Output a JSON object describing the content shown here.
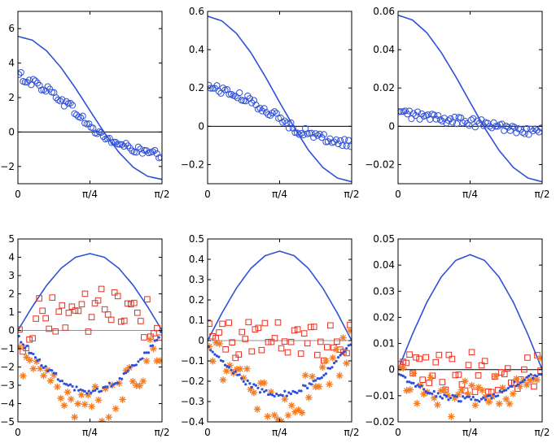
{
  "chart_data": [
    {
      "type": "line+scatter",
      "title": "",
      "xlabel": "",
      "ylabel": "",
      "xlim": [
        0,
        1.5708
      ],
      "x_ticks": [
        {
          "value": 0,
          "label": "0"
        },
        {
          "value": 0.7854,
          "label": "π/4"
        },
        {
          "value": 1.5708,
          "label": "π/2"
        }
      ],
      "ylim": [
        -3,
        7
      ],
      "y_ticks": [
        {
          "value": -2,
          "label": "−2"
        },
        {
          "value": 0,
          "label": "0"
        },
        {
          "value": 2,
          "label": "2"
        },
        {
          "value": 4,
          "label": "4"
        },
        {
          "value": 6,
          "label": "6"
        }
      ],
      "baseline": {
        "value": 0,
        "color": "#000000"
      },
      "series": [
        {
          "name": "model",
          "style": "line",
          "color": "#3050d8",
          "x": [
            0,
            0.1571,
            0.3142,
            0.4712,
            0.6283,
            0.7854,
            0.9425,
            1.0996,
            1.2566,
            1.4137,
            1.5708
          ],
          "y": [
            5.55,
            5.33,
            4.7,
            3.73,
            2.54,
            1.24,
            -0.04,
            -1.17,
            -2.04,
            -2.57,
            -2.75
          ]
        },
        {
          "name": "simulation",
          "style": "circle",
          "color": "#3050d8",
          "x": [
            0,
            0.1571,
            0.3142,
            0.4712,
            0.6283,
            0.7854,
            0.9425,
            1.0996,
            1.2566,
            1.4137,
            1.5708
          ],
          "y": [
            3.3,
            2.9,
            2.5,
            1.9,
            1.2,
            0.3,
            -0.3,
            -0.7,
            -1.0,
            -1.2,
            -1.4
          ]
        }
      ]
    },
    {
      "type": "line+scatter",
      "title": "",
      "xlabel": "",
      "ylabel": "",
      "xlim": [
        0,
        1.5708
      ],
      "x_ticks": [
        {
          "value": 0,
          "label": "0"
        },
        {
          "value": 0.7854,
          "label": "π/4"
        },
        {
          "value": 1.5708,
          "label": "π/2"
        }
      ],
      "ylim": [
        -0.3,
        0.6
      ],
      "y_ticks": [
        {
          "value": -0.2,
          "label": "−0.2"
        },
        {
          "value": 0,
          "label": "0"
        },
        {
          "value": 0.2,
          "label": "0.2"
        },
        {
          "value": 0.4,
          "label": "0.4"
        },
        {
          "value": 0.6,
          "label": "0.6"
        }
      ],
      "baseline": {
        "value": 0,
        "color": "#000000"
      },
      "series": [
        {
          "name": "model",
          "style": "line",
          "color": "#3050d8",
          "x": [
            0,
            0.1571,
            0.3142,
            0.4712,
            0.6283,
            0.7854,
            0.9425,
            1.0996,
            1.2566,
            1.4137,
            1.5708
          ],
          "y": [
            0.575,
            0.55,
            0.485,
            0.385,
            0.26,
            0.125,
            -0.005,
            -0.125,
            -0.215,
            -0.27,
            -0.29
          ]
        },
        {
          "name": "simulation",
          "style": "circle",
          "color": "#3050d8",
          "x": [
            0,
            0.1571,
            0.3142,
            0.4712,
            0.6283,
            0.7854,
            0.9425,
            1.0996,
            1.2566,
            1.4137,
            1.5708
          ],
          "y": [
            0.21,
            0.19,
            0.16,
            0.13,
            0.09,
            0.04,
            -0.01,
            -0.04,
            -0.06,
            -0.08,
            -0.09
          ]
        }
      ]
    },
    {
      "type": "line+scatter",
      "title": "",
      "xlabel": "",
      "ylabel": "",
      "xlim": [
        0,
        1.5708
      ],
      "x_ticks": [
        {
          "value": 0,
          "label": "0"
        },
        {
          "value": 0.7854,
          "label": "π/4"
        },
        {
          "value": 1.5708,
          "label": "π/2"
        }
      ],
      "ylim": [
        -0.03,
        0.06
      ],
      "y_ticks": [
        {
          "value": -0.02,
          "label": "−0.02"
        },
        {
          "value": 0,
          "label": "0"
        },
        {
          "value": 0.02,
          "label": "0.02"
        },
        {
          "value": 0.04,
          "label": "0.04"
        },
        {
          "value": 0.06,
          "label": "0.06"
        }
      ],
      "baseline": {
        "value": 0,
        "color": "#000000"
      },
      "series": [
        {
          "name": "model",
          "style": "line",
          "color": "#3050d8",
          "x": [
            0,
            0.1571,
            0.3142,
            0.4712,
            0.6283,
            0.7854,
            0.9425,
            1.0996,
            1.2566,
            1.4137,
            1.5708
          ],
          "y": [
            0.058,
            0.0555,
            0.0488,
            0.0385,
            0.026,
            0.0125,
            -0.0008,
            -0.0125,
            -0.0215,
            -0.027,
            -0.029
          ]
        },
        {
          "name": "simulation",
          "style": "circle",
          "color": "#3050d8",
          "x": [
            0,
            0.1571,
            0.3142,
            0.4712,
            0.6283,
            0.7854,
            0.9425,
            1.0996,
            1.2566,
            1.4137,
            1.5708
          ],
          "y": [
            0.007,
            0.006,
            0.005,
            0.004,
            0.003,
            0.002,
            0.001,
            0.0,
            -0.001,
            -0.002,
            -0.003
          ]
        }
      ]
    },
    {
      "type": "line+scatter",
      "title": "",
      "xlabel": "",
      "ylabel": "",
      "xlim": [
        0,
        1.5708
      ],
      "x_ticks": [
        {
          "value": 0,
          "label": "0"
        },
        {
          "value": 0.7854,
          "label": "π/4"
        },
        {
          "value": 1.5708,
          "label": "π/2"
        }
      ],
      "ylim": [
        -5,
        5
      ],
      "y_ticks": [
        {
          "value": -5,
          "label": "−5"
        },
        {
          "value": -4,
          "label": "−4"
        },
        {
          "value": -3,
          "label": "−3"
        },
        {
          "value": -2,
          "label": "−2"
        },
        {
          "value": -1,
          "label": "−1"
        },
        {
          "value": 0,
          "label": "0"
        },
        {
          "value": 1,
          "label": "1"
        },
        {
          "value": 2,
          "label": "2"
        },
        {
          "value": 3,
          "label": "3"
        },
        {
          "value": 4,
          "label": "4"
        },
        {
          "value": 5,
          "label": "5"
        }
      ],
      "baseline": {
        "value": 0,
        "color": "#909090"
      },
      "series": [
        {
          "name": "model",
          "style": "line",
          "color": "#3050d8",
          "x": [
            0,
            0.1571,
            0.3142,
            0.4712,
            0.6283,
            0.7854,
            0.9425,
            1.0996,
            1.2566,
            1.4137,
            1.5708
          ],
          "y": [
            0.0,
            1.3,
            2.47,
            3.4,
            4.0,
            4.2,
            4.0,
            3.4,
            2.47,
            1.3,
            0.0
          ]
        },
        {
          "name": "square",
          "style": "square",
          "color": "#e83020",
          "x": [
            0,
            0.1571,
            0.3142,
            0.4712,
            0.6283,
            0.7854,
            0.9425,
            1.0996,
            1.2566,
            1.4137,
            1.5708
          ],
          "y": [
            -0.4,
            0.3,
            1.2,
            0.6,
            1.4,
            0.9,
            1.3,
            1.6,
            0.5,
            0.7,
            0.0
          ]
        },
        {
          "name": "star",
          "style": "star",
          "color": "#f57a20",
          "x": [
            0,
            0.1571,
            0.3142,
            0.4712,
            0.6283,
            0.7854,
            0.9425,
            1.0996,
            1.2566,
            1.4137,
            1.5708
          ],
          "y": [
            -1.2,
            -2.0,
            -3.0,
            -3.5,
            -4.2,
            -3.5,
            -4.0,
            -3.0,
            -2.6,
            -1.6,
            -0.5
          ]
        },
        {
          "name": "dot",
          "style": "dot",
          "color": "#3050d8",
          "x": [
            0,
            0.1571,
            0.3142,
            0.4712,
            0.6283,
            0.7854,
            0.9425,
            1.0996,
            1.2566,
            1.4137,
            1.5708
          ],
          "y": [
            -0.3,
            -1.3,
            -2.1,
            -2.7,
            -3.2,
            -3.35,
            -3.2,
            -2.7,
            -2.0,
            -1.2,
            0.0
          ]
        }
      ]
    },
    {
      "type": "line+scatter",
      "title": "",
      "xlabel": "",
      "ylabel": "",
      "xlim": [
        0,
        1.5708
      ],
      "x_ticks": [
        {
          "value": 0,
          "label": "0"
        },
        {
          "value": 0.7854,
          "label": "π/4"
        },
        {
          "value": 1.5708,
          "label": "π/2"
        }
      ],
      "ylim": [
        -0.4,
        0.5
      ],
      "y_ticks": [
        {
          "value": -0.4,
          "label": "−0.4"
        },
        {
          "value": -0.3,
          "label": "−0.3"
        },
        {
          "value": -0.2,
          "label": "−0.2"
        },
        {
          "value": -0.1,
          "label": "−0.1"
        },
        {
          "value": 0,
          "label": "0"
        },
        {
          "value": 0.1,
          "label": "0.1"
        },
        {
          "value": 0.2,
          "label": "0.2"
        },
        {
          "value": 0.3,
          "label": "0.3"
        },
        {
          "value": 0.4,
          "label": "0.4"
        },
        {
          "value": 0.5,
          "label": "0.5"
        }
      ],
      "baseline": {
        "value": 0,
        "color": "#909090"
      },
      "series": [
        {
          "name": "model",
          "style": "line",
          "color": "#3050d8",
          "x": [
            0,
            0.1571,
            0.3142,
            0.4712,
            0.6283,
            0.7854,
            0.9425,
            1.0996,
            1.2566,
            1.4137,
            1.5708
          ],
          "y": [
            0.0,
            0.136,
            0.258,
            0.355,
            0.418,
            0.44,
            0.418,
            0.355,
            0.258,
            0.136,
            0.0
          ]
        },
        {
          "name": "square",
          "style": "square",
          "color": "#e83020",
          "x": [
            0,
            0.1571,
            0.3142,
            0.4712,
            0.6283,
            0.7854,
            0.9425,
            1.0996,
            1.2566,
            1.4137,
            1.5708
          ],
          "y": [
            0.05,
            0.02,
            -0.01,
            0.04,
            0.0,
            0.02,
            0.03,
            0.01,
            -0.02,
            0.02,
            0.0
          ]
        },
        {
          "name": "star",
          "style": "star",
          "color": "#f57a20",
          "x": [
            0,
            0.1571,
            0.3142,
            0.4712,
            0.6283,
            0.7854,
            0.9425,
            1.0996,
            1.2566,
            1.4137,
            1.5708
          ],
          "y": [
            -0.06,
            -0.12,
            -0.18,
            -0.25,
            -0.29,
            -0.31,
            -0.29,
            -0.26,
            -0.2,
            -0.12,
            -0.03
          ]
        },
        {
          "name": "dot",
          "style": "dot",
          "color": "#3050d8",
          "x": [
            0,
            0.1571,
            0.3142,
            0.4712,
            0.6283,
            0.7854,
            0.9425,
            1.0996,
            1.2566,
            1.4137,
            1.5708
          ],
          "y": [
            -0.03,
            -0.1,
            -0.17,
            -0.22,
            -0.255,
            -0.265,
            -0.255,
            -0.22,
            -0.17,
            -0.1,
            -0.01
          ]
        }
      ]
    },
    {
      "type": "line+scatter",
      "title": "",
      "xlabel": "",
      "ylabel": "",
      "xlim": [
        0,
        1.5708
      ],
      "x_ticks": [
        {
          "value": 0,
          "label": "0"
        },
        {
          "value": 0.7854,
          "label": "π/4"
        },
        {
          "value": 1.5708,
          "label": "π/2"
        }
      ],
      "ylim": [
        -0.02,
        0.05
      ],
      "y_ticks": [
        {
          "value": -0.02,
          "label": "−0.02"
        },
        {
          "value": -0.01,
          "label": "−0.01"
        },
        {
          "value": 0,
          "label": "0"
        },
        {
          "value": 0.01,
          "label": "0.01"
        },
        {
          "value": 0.02,
          "label": "0.02"
        },
        {
          "value": 0.03,
          "label": "0.03"
        },
        {
          "value": 0.04,
          "label": "0.04"
        },
        {
          "value": 0.05,
          "label": "0.05"
        }
      ],
      "baseline": {
        "value": 0,
        "color": "#000000"
      },
      "series": [
        {
          "name": "model",
          "style": "line",
          "color": "#3050d8",
          "x": [
            0,
            0.1571,
            0.3142,
            0.4712,
            0.6283,
            0.7854,
            0.9425,
            1.0996,
            1.2566,
            1.4137,
            1.5708
          ],
          "y": [
            0.0,
            0.0136,
            0.0258,
            0.0355,
            0.0418,
            0.044,
            0.0418,
            0.0355,
            0.0258,
            0.0136,
            0.0
          ]
        },
        {
          "name": "square",
          "style": "square",
          "color": "#e83020",
          "x": [
            0,
            0.1571,
            0.3142,
            0.4712,
            0.6283,
            0.7854,
            0.9425,
            1.0996,
            1.2566,
            1.4137,
            1.5708
          ],
          "y": [
            -0.001,
            -0.001,
            -0.002,
            -0.001,
            -0.002,
            -0.001,
            -0.001,
            -0.002,
            -0.001,
            0.0,
            0.0
          ]
        },
        {
          "name": "star",
          "style": "star",
          "color": "#f57a20",
          "x": [
            0,
            0.1571,
            0.3142,
            0.4712,
            0.6283,
            0.7854,
            0.9425,
            1.0996,
            1.2566,
            1.4137,
            1.5708
          ],
          "y": [
            -0.002,
            -0.006,
            -0.009,
            -0.011,
            -0.012,
            -0.012,
            -0.011,
            -0.009,
            -0.006,
            -0.003,
            -0.001
          ]
        },
        {
          "name": "dot",
          "style": "dot",
          "color": "#3050d8",
          "x": [
            0,
            0.1571,
            0.3142,
            0.4712,
            0.6283,
            0.7854,
            0.9425,
            1.0996,
            1.2566,
            1.4137,
            1.5708
          ],
          "y": [
            -0.002,
            -0.005,
            -0.008,
            -0.01,
            -0.011,
            -0.0115,
            -0.011,
            -0.009,
            -0.006,
            -0.003,
            -0.001
          ]
        }
      ]
    }
  ]
}
